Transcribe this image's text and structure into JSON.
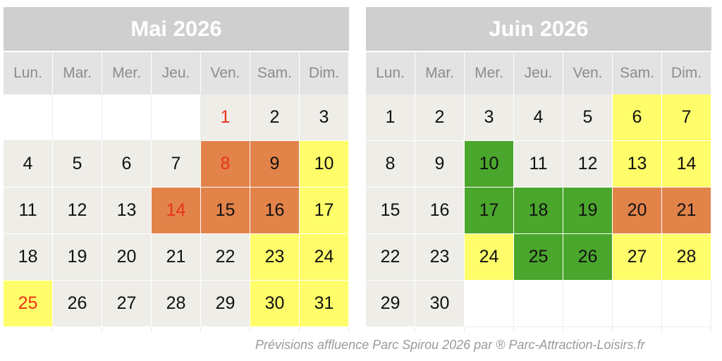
{
  "colors": {
    "normal": "#eeede8",
    "yellow": "#fffe6a",
    "orange": "#e2834a",
    "green": "#4aa62c",
    "holiday_text": "#e8321c",
    "text": "#111111"
  },
  "weekdays": [
    "Lun.",
    "Mar.",
    "Mer.",
    "Jeu.",
    "Ven.",
    "Sam.",
    "Dim."
  ],
  "months": [
    {
      "title": "Mai 2026",
      "offset": 4,
      "days": [
        {
          "d": "1",
          "c": "normal",
          "h": true
        },
        {
          "d": "2",
          "c": "normal"
        },
        {
          "d": "3",
          "c": "normal"
        },
        {
          "d": "4",
          "c": "normal"
        },
        {
          "d": "5",
          "c": "normal"
        },
        {
          "d": "6",
          "c": "normal"
        },
        {
          "d": "7",
          "c": "normal"
        },
        {
          "d": "8",
          "c": "orange",
          "h": true
        },
        {
          "d": "9",
          "c": "orange"
        },
        {
          "d": "10",
          "c": "yellow"
        },
        {
          "d": "11",
          "c": "normal"
        },
        {
          "d": "12",
          "c": "normal"
        },
        {
          "d": "13",
          "c": "normal"
        },
        {
          "d": "14",
          "c": "orange",
          "h": true
        },
        {
          "d": "15",
          "c": "orange"
        },
        {
          "d": "16",
          "c": "orange"
        },
        {
          "d": "17",
          "c": "yellow"
        },
        {
          "d": "18",
          "c": "normal"
        },
        {
          "d": "19",
          "c": "normal"
        },
        {
          "d": "20",
          "c": "normal"
        },
        {
          "d": "21",
          "c": "normal"
        },
        {
          "d": "22",
          "c": "normal"
        },
        {
          "d": "23",
          "c": "yellow"
        },
        {
          "d": "24",
          "c": "yellow"
        },
        {
          "d": "25",
          "c": "yellow",
          "h": true
        },
        {
          "d": "26",
          "c": "normal"
        },
        {
          "d": "27",
          "c": "normal"
        },
        {
          "d": "28",
          "c": "normal"
        },
        {
          "d": "29",
          "c": "normal"
        },
        {
          "d": "30",
          "c": "yellow"
        },
        {
          "d": "31",
          "c": "yellow"
        }
      ]
    },
    {
      "title": "Juin 2026",
      "offset": 0,
      "days": [
        {
          "d": "1",
          "c": "normal"
        },
        {
          "d": "2",
          "c": "normal"
        },
        {
          "d": "3",
          "c": "normal"
        },
        {
          "d": "4",
          "c": "normal"
        },
        {
          "d": "5",
          "c": "normal"
        },
        {
          "d": "6",
          "c": "yellow"
        },
        {
          "d": "7",
          "c": "yellow"
        },
        {
          "d": "8",
          "c": "normal"
        },
        {
          "d": "9",
          "c": "normal"
        },
        {
          "d": "10",
          "c": "green"
        },
        {
          "d": "11",
          "c": "normal"
        },
        {
          "d": "12",
          "c": "normal"
        },
        {
          "d": "13",
          "c": "yellow"
        },
        {
          "d": "14",
          "c": "yellow"
        },
        {
          "d": "15",
          "c": "normal"
        },
        {
          "d": "16",
          "c": "normal"
        },
        {
          "d": "17",
          "c": "green"
        },
        {
          "d": "18",
          "c": "green"
        },
        {
          "d": "19",
          "c": "green"
        },
        {
          "d": "20",
          "c": "orange"
        },
        {
          "d": "21",
          "c": "orange"
        },
        {
          "d": "22",
          "c": "normal"
        },
        {
          "d": "23",
          "c": "normal"
        },
        {
          "d": "24",
          "c": "yellow"
        },
        {
          "d": "25",
          "c": "green"
        },
        {
          "d": "26",
          "c": "green"
        },
        {
          "d": "27",
          "c": "yellow"
        },
        {
          "d": "28",
          "c": "yellow"
        },
        {
          "d": "29",
          "c": "normal"
        },
        {
          "d": "30",
          "c": "normal"
        }
      ]
    }
  ],
  "caption": "Prévisions affluence Parc Spirou 2026 par ® Parc-Attraction-Loisirs.fr"
}
